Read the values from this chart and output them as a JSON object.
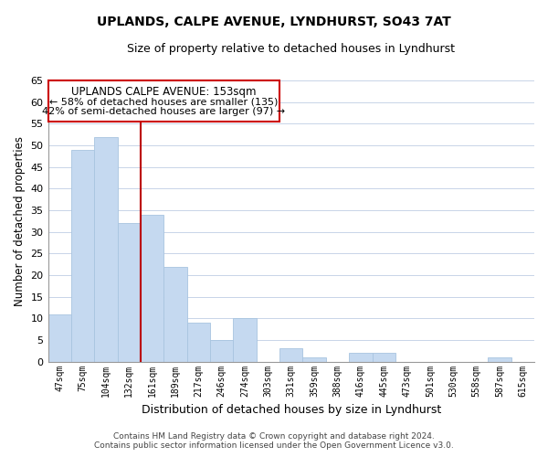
{
  "title": "UPLANDS, CALPE AVENUE, LYNDHURST, SO43 7AT",
  "subtitle": "Size of property relative to detached houses in Lyndhurst",
  "xlabel": "Distribution of detached houses by size in Lyndhurst",
  "ylabel": "Number of detached properties",
  "bar_color": "#c5d9f0",
  "bar_edge_color": "#a8c4e0",
  "categories": [
    "47sqm",
    "75sqm",
    "104sqm",
    "132sqm",
    "161sqm",
    "189sqm",
    "217sqm",
    "246sqm",
    "274sqm",
    "303sqm",
    "331sqm",
    "359sqm",
    "388sqm",
    "416sqm",
    "445sqm",
    "473sqm",
    "501sqm",
    "530sqm",
    "558sqm",
    "587sqm",
    "615sqm"
  ],
  "values": [
    11,
    49,
    52,
    32,
    34,
    22,
    9,
    5,
    10,
    0,
    3,
    1,
    0,
    2,
    2,
    0,
    0,
    0,
    0,
    1,
    0
  ],
  "ylim": [
    0,
    65
  ],
  "yticks": [
    0,
    5,
    10,
    15,
    20,
    25,
    30,
    35,
    40,
    45,
    50,
    55,
    60,
    65
  ],
  "vline_pos": 3.5,
  "vline_color": "#bb0000",
  "annotation_title": "UPLANDS CALPE AVENUE: 153sqm",
  "annotation_line1": "← 58% of detached houses are smaller (135)",
  "annotation_line2": "42% of semi-detached houses are larger (97) →",
  "footnote1": "Contains HM Land Registry data © Crown copyright and database right 2024.",
  "footnote2": "Contains public sector information licensed under the Open Government Licence v3.0.",
  "background_color": "#ffffff",
  "grid_color": "#c8d4e8"
}
